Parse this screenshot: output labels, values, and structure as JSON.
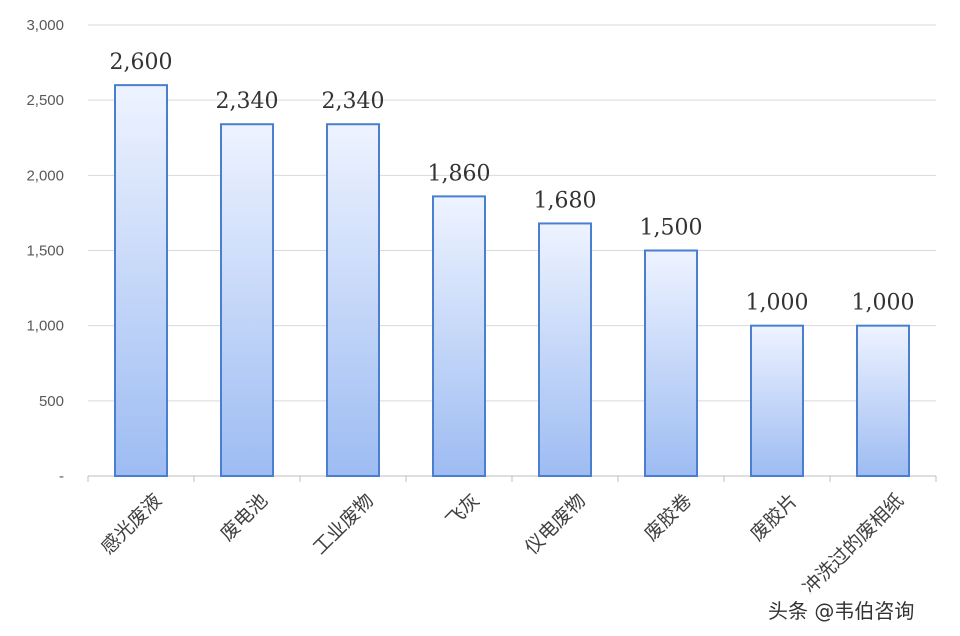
{
  "chart_data": {
    "type": "bar",
    "categories": [
      "感光废液",
      "废电池",
      "工业废物",
      "飞灰",
      "仪电废物",
      "废胶卷",
      "废胶片",
      "冲洗过的废相纸"
    ],
    "values": [
      2600,
      2340,
      2340,
      1860,
      1680,
      1500,
      1000,
      1000
    ],
    "data_labels": [
      "2,600",
      "2,340",
      "2,340",
      "1,860",
      "1,680",
      "1,500",
      "1,000",
      "1,000"
    ],
    "y_ticks": [
      {
        "value": 0,
        "label": "-"
      },
      {
        "value": 500,
        "label": "500"
      },
      {
        "value": 1000,
        "label": "1,000"
      },
      {
        "value": 1500,
        "label": "1,500"
      },
      {
        "value": 2000,
        "label": "2,000"
      },
      {
        "value": 2500,
        "label": "2,500"
      },
      {
        "value": 3000,
        "label": "3,000"
      }
    ],
    "ylim": [
      0,
      3000
    ],
    "grid": true,
    "colors": {
      "bar_top": "#eef3ff",
      "bar_bottom": "#9dbcf2",
      "bar_stroke": "#4a7fd0",
      "grid": "#d9d9d9",
      "axis": "#bfbfbf"
    }
  },
  "watermark": {
    "text": "头条 @韦伯咨询",
    "icon": "chat-bubble-icon"
  }
}
